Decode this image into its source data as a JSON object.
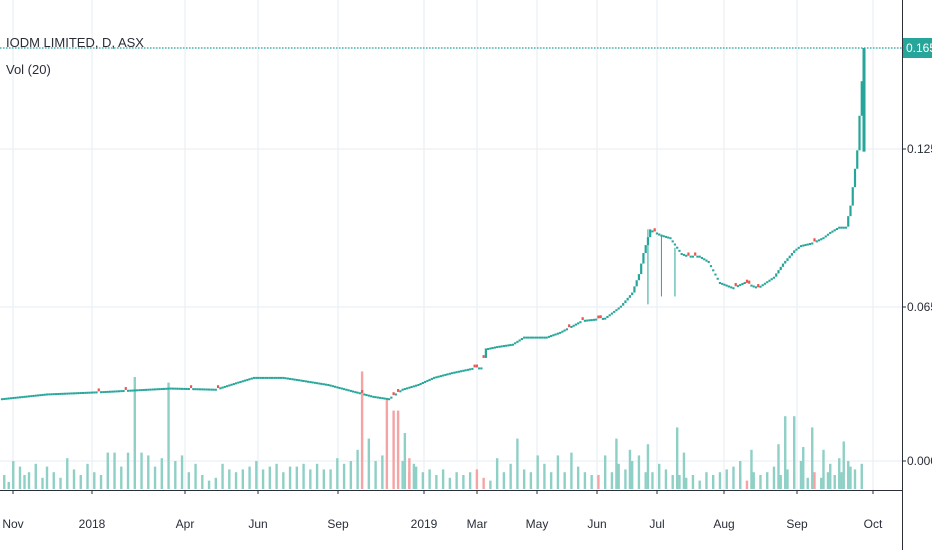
{
  "chart_data": {
    "type": "candlestick",
    "symbol_title": "IODM LIMITED, D, ASX",
    "volume_label": "Vol (20)",
    "y_axis": {
      "ticks": [
        "0.165",
        "0.125",
        "0.065",
        "0.000"
      ],
      "tick_values": [
        0.165,
        0.125,
        0.065,
        0.0
      ],
      "last_price_label": "0.165"
    },
    "x_axis": {
      "labels": [
        "Nov",
        "2018",
        "Apr",
        "Jun",
        "Sep",
        "2019",
        "Mar",
        "May",
        "Jun",
        "Jul",
        "Aug",
        "Sep",
        "Oct"
      ]
    },
    "colors": {
      "up": "#26a69a",
      "down": "#ef5350",
      "vol_up": "#8fd0c6",
      "vol_down": "#f5a3a3",
      "grid": "#e6eef2",
      "last_price": "#26a69a",
      "axis_text": "#2a2e39"
    },
    "price_segments": [
      [
        0,
        0.0265
      ],
      [
        20,
        0.0285
      ],
      [
        45,
        0.0295
      ],
      [
        65,
        0.0305
      ],
      [
        75,
        0.031
      ],
      [
        95,
        0.0305
      ],
      [
        105,
        0.0335
      ],
      [
        112,
        0.0355
      ],
      [
        125,
        0.0355
      ],
      [
        132,
        0.0345
      ],
      [
        145,
        0.0325
      ],
      [
        165,
        0.0275
      ],
      [
        172,
        0.0265
      ],
      [
        178,
        0.0305
      ],
      [
        185,
        0.0325
      ],
      [
        192,
        0.0355
      ],
      [
        200,
        0.0375
      ],
      [
        210,
        0.0395
      ],
      [
        213,
        0.0395
      ],
      [
        215,
        0.0475
      ],
      [
        220,
        0.0485
      ],
      [
        227,
        0.0495
      ],
      [
        232,
        0.0525
      ],
      [
        242,
        0.0525
      ],
      [
        248,
        0.0545
      ],
      [
        252,
        0.0565
      ],
      [
        258,
        0.0595
      ],
      [
        268,
        0.0605
      ],
      [
        275,
        0.0655
      ],
      [
        280,
        0.0705
      ],
      [
        283,
        0.0775
      ],
      [
        285,
        0.0855
      ],
      [
        288,
        0.0945
      ],
      [
        293,
        0.0925
      ],
      [
        297,
        0.0915
      ],
      [
        302,
        0.0855
      ],
      [
        305,
        0.0845
      ],
      [
        310,
        0.0845
      ],
      [
        314,
        0.0825
      ],
      [
        319,
        0.0745
      ],
      [
        325,
        0.0725
      ],
      [
        330,
        0.0745
      ],
      [
        336,
        0.0725
      ],
      [
        343,
        0.0765
      ],
      [
        347,
        0.0815
      ],
      [
        352,
        0.0865
      ],
      [
        355,
        0.0885
      ],
      [
        360,
        0.0895
      ],
      [
        365,
        0.0915
      ],
      [
        368,
        0.0935
      ],
      [
        372,
        0.0955
      ],
      [
        375,
        0.0955
      ],
      [
        377,
        0.1035
      ],
      [
        380,
        0.1245
      ],
      [
        383,
        0.1655
      ]
    ],
    "down_days": [
      43,
      55,
      84,
      96,
      160,
      174,
      176,
      210,
      211,
      214,
      252,
      258,
      265,
      266,
      290,
      305,
      308,
      326,
      331,
      332,
      336,
      361
    ],
    "volume_bars": [
      [
        1,
        0.5
      ],
      [
        3,
        0.25
      ],
      [
        5,
        1.0
      ],
      [
        8,
        0.8
      ],
      [
        10,
        0.5
      ],
      [
        12,
        0.6
      ],
      [
        15,
        0.9
      ],
      [
        18,
        0.4
      ],
      [
        20,
        0.8
      ],
      [
        23,
        0.6
      ],
      [
        26,
        0.4
      ],
      [
        29,
        1.1
      ],
      [
        32,
        0.7
      ],
      [
        35,
        0.5
      ],
      [
        38,
        0.9
      ],
      [
        41,
        0.6
      ],
      [
        44,
        0.5
      ],
      [
        47,
        1.3
      ],
      [
        50,
        1.3
      ],
      [
        53,
        0.8
      ],
      [
        56,
        1.3
      ],
      [
        59,
        4.0
      ],
      [
        62,
        1.3
      ],
      [
        65,
        1.2
      ],
      [
        68,
        0.8
      ],
      [
        71,
        1.1
      ],
      [
        74,
        3.8
      ],
      [
        77,
        1.0
      ],
      [
        80,
        1.2
      ],
      [
        83,
        0.6
      ],
      [
        86,
        0.9
      ],
      [
        89,
        0.5
      ],
      [
        92,
        0.3
      ],
      [
        95,
        0.4
      ],
      [
        98,
        0.9
      ],
      [
        101,
        0.7
      ],
      [
        104,
        0.6
      ],
      [
        107,
        0.7
      ],
      [
        110,
        0.8
      ],
      [
        113,
        1.0
      ],
      [
        116,
        0.7
      ],
      [
        119,
        0.8
      ],
      [
        122,
        0.9
      ],
      [
        125,
        0.6
      ],
      [
        128,
        0.8
      ],
      [
        131,
        0.8
      ],
      [
        134,
        0.9
      ],
      [
        137,
        0.7
      ],
      [
        140,
        0.9
      ],
      [
        143,
        0.7
      ],
      [
        146,
        0.7
      ],
      [
        149,
        1.1
      ],
      [
        152,
        0.9
      ],
      [
        155,
        1.0
      ],
      [
        158,
        1.4
      ],
      [
        160,
        4.2
      ],
      [
        163,
        1.8
      ],
      [
        166,
        1.0
      ],
      [
        169,
        1.2
      ],
      [
        171,
        3.2
      ],
      [
        174,
        2.8
      ],
      [
        176,
        2.8
      ],
      [
        178,
        1.0
      ],
      [
        181,
        0.6
      ],
      [
        184,
        0.8
      ],
      [
        187,
        0.6
      ],
      [
        190,
        0.7
      ],
      [
        193,
        0.5
      ],
      [
        196,
        0.7
      ],
      [
        199,
        0.4
      ],
      [
        202,
        0.6
      ],
      [
        205,
        0.5
      ],
      [
        208,
        0.6
      ],
      [
        211,
        0.7
      ],
      [
        214,
        0.4
      ],
      [
        217,
        0.3
      ],
      [
        220,
        1.1
      ],
      [
        223,
        0.6
      ],
      [
        226,
        0.9
      ],
      [
        229,
        1.8
      ],
      [
        232,
        0.7
      ],
      [
        235,
        0.6
      ],
      [
        238,
        1.2
      ],
      [
        241,
        0.9
      ],
      [
        244,
        0.6
      ],
      [
        247,
        1.2
      ],
      [
        250,
        0.6
      ],
      [
        253,
        1.3
      ],
      [
        256,
        0.8
      ],
      [
        259,
        0.6
      ],
      [
        262,
        0.5
      ],
      [
        265,
        0.5
      ],
      [
        268,
        1.2
      ],
      [
        271,
        0.6
      ],
      [
        274,
        0.9
      ],
      [
        277,
        0.7
      ],
      [
        280,
        1.0
      ],
      [
        283,
        1.2
      ],
      [
        286,
        0.6
      ],
      [
        289,
        0.6
      ],
      [
        292,
        0.9
      ],
      [
        295,
        0.7
      ],
      [
        298,
        0.5
      ],
      [
        301,
        0.5
      ],
      [
        304,
        0.4
      ],
      [
        307,
        0.5
      ],
      [
        310,
        0.3
      ],
      [
        313,
        0.6
      ],
      [
        316,
        0.5
      ],
      [
        319,
        0.6
      ],
      [
        322,
        0.7
      ],
      [
        325,
        0.8
      ],
      [
        328,
        0.5
      ],
      [
        331,
        0.3
      ],
      [
        334,
        0.6
      ],
      [
        337,
        0.5
      ],
      [
        340,
        0.6
      ],
      [
        343,
        0.8
      ],
      [
        346,
        0.5
      ],
      [
        349,
        0.7
      ],
      [
        352,
        0.6
      ],
      [
        355,
        1.0
      ],
      [
        358,
        0.4
      ],
      [
        361,
        0.6
      ],
      [
        364,
        0.4
      ],
      [
        367,
        0.6
      ],
      [
        370,
        0.5
      ],
      [
        373,
        0.6
      ],
      [
        376,
        1.0
      ],
      [
        379,
        0.7
      ],
      [
        382,
        0.9
      ]
    ],
    "volume_tall_bars": [
      [
        179,
        2.0
      ],
      [
        181,
        1.1
      ],
      [
        183,
        0.9
      ],
      [
        273,
        1.8
      ],
      [
        279,
        1.4
      ],
      [
        287,
        1.6
      ],
      [
        300,
        2.2
      ],
      [
        303,
        1.3
      ],
      [
        328,
        1.0
      ],
      [
        333,
        1.4
      ],
      [
        345,
        1.6
      ],
      [
        348,
        2.6
      ],
      [
        352,
        2.6
      ],
      [
        356,
        1.5
      ],
      [
        360,
        2.2
      ],
      [
        365,
        1.4
      ],
      [
        368,
        0.9
      ],
      [
        372,
        1.1
      ],
      [
        374,
        1.7
      ],
      [
        377,
        0.8
      ]
    ],
    "volume_down_bars": [
      43,
      55,
      84,
      160,
      171,
      174,
      176,
      181,
      211,
      214,
      257,
      258,
      265,
      266,
      305,
      331,
      336,
      361
    ]
  }
}
